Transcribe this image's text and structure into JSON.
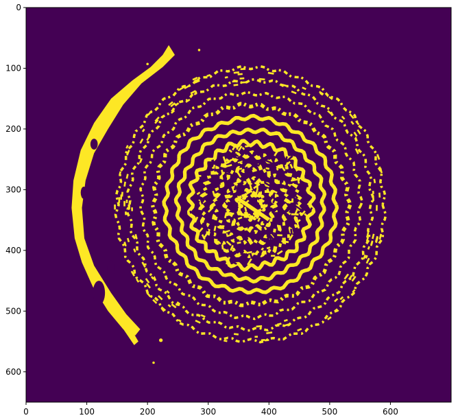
{
  "chart_data": {
    "type": "heatmap",
    "title": "",
    "xlabel": "",
    "ylabel": "",
    "image_size": {
      "width": 700,
      "height": 650
    },
    "xlim": [
      0,
      700
    ],
    "ylim": [
      650,
      0
    ],
    "xticks": [
      0,
      100,
      200,
      300,
      400,
      500,
      600
    ],
    "yticks": [
      0,
      100,
      200,
      300,
      400,
      500,
      600
    ],
    "colormap": {
      "low": "#440154",
      "high": "#fde725"
    },
    "values_present": [
      0,
      1
    ],
    "features": [
      {
        "name": "concentric-ring-pattern",
        "value": 1,
        "center": [
          370,
          325
        ],
        "ring_spacing": 20,
        "outer_radius_x": 215,
        "outer_radius_y": 220
      },
      {
        "name": "crescent-band",
        "value": 1,
        "x_range": [
          55,
          245
        ],
        "y_range": [
          60,
          555
        ]
      }
    ]
  }
}
